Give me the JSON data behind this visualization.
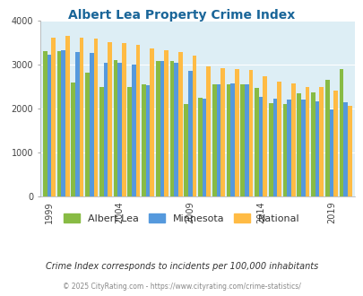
{
  "title": "Albert Lea Property Crime Index",
  "title_color": "#1a6699",
  "subtitle": "Crime Index corresponds to incidents per 100,000 inhabitants",
  "footer": "© 2025 CityRating.com - https://www.cityrating.com/crime-statistics/",
  "years": [
    1999,
    2000,
    2001,
    2002,
    2003,
    2004,
    2005,
    2006,
    2007,
    2008,
    2009,
    2010,
    2011,
    2012,
    2013,
    2014,
    2015,
    2016,
    2017,
    2018,
    2019,
    2020
  ],
  "albert_lea": [
    3300,
    3310,
    2600,
    2820,
    2490,
    3100,
    2500,
    2560,
    3080,
    3080,
    2100,
    2240,
    2550,
    2560,
    2560,
    2480,
    2120,
    2110,
    2350,
    2380,
    2650,
    2900
  ],
  "minnesota": [
    3220,
    3330,
    3280,
    3260,
    3040,
    3040,
    3010,
    2540,
    3080,
    3050,
    2870,
    2230,
    2560,
    2580,
    2560,
    2280,
    2220,
    2200,
    2200,
    2170,
    1995,
    2155
  ],
  "national": [
    3620,
    3650,
    3620,
    3590,
    3520,
    3500,
    3450,
    3370,
    3335,
    3280,
    3210,
    2970,
    2920,
    2910,
    2890,
    2730,
    2610,
    2580,
    2495,
    2490,
    2415,
    2070
  ],
  "bar_colors": {
    "albert_lea": "#88bb44",
    "minnesota": "#5599dd",
    "national": "#ffbb44"
  },
  "bg_color": "#ddeef5",
  "ylim": [
    0,
    4000
  ],
  "yticks": [
    0,
    1000,
    2000,
    3000,
    4000
  ],
  "xtick_years": [
    1999,
    2004,
    2009,
    2014,
    2019
  ],
  "legend_labels": [
    "Albert Lea",
    "Minnesota",
    "National"
  ],
  "legend_colors": [
    "#88bb44",
    "#5599dd",
    "#ffbb44"
  ]
}
